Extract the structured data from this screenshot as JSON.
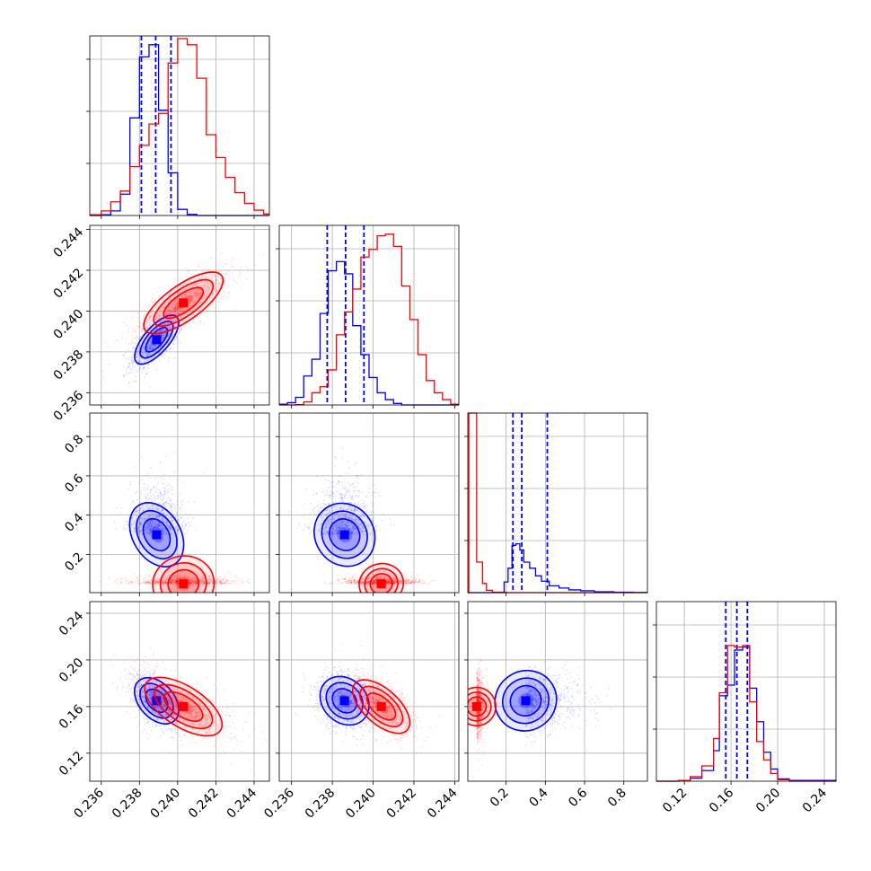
{
  "chart_data": {
    "type": "corner",
    "grid": true,
    "parameters": [
      {
        "range": [
          0.2354,
          0.2448
        ],
        "ticks": [
          "0.236",
          "0.238",
          "0.240",
          "0.242",
          "0.244"
        ],
        "tick_values": [
          0.236,
          0.238,
          0.24,
          0.242,
          0.244
        ]
      },
      {
        "range": [
          0.2354,
          0.2442
        ],
        "ticks": [
          "0.236",
          "0.238",
          "0.240",
          "0.242",
          "0.244"
        ],
        "tick_values": [
          0.236,
          0.238,
          0.24,
          0.242,
          0.244
        ]
      },
      {
        "range": [
          0.005,
          0.92
        ],
        "ticks": [
          "0.2",
          "0.4",
          "0.6",
          "0.8"
        ],
        "tick_values": [
          0.2,
          0.4,
          0.6,
          0.8
        ]
      },
      {
        "range": [
          0.096,
          0.25
        ],
        "ticks": [
          "0.12",
          "0.16",
          "0.20",
          "0.24"
        ],
        "tick_values": [
          0.12,
          0.16,
          0.2,
          0.24
        ]
      }
    ],
    "series": [
      {
        "color": "#0000ff",
        "quantiles": [
          [
            0.2381,
            0.23885,
            0.23965
          ],
          [
            0.23775,
            0.23865,
            0.23955
          ],
          [
            0.235,
            0.28,
            0.41
          ],
          [
            0.1555,
            0.165,
            0.174
          ]
        ],
        "means": [
          0.2389,
          0.2386,
          0.3,
          0.165
        ],
        "sds": [
          0.00055,
          0.0006,
          0.09,
          0.01
        ],
        "hist": [
          [
            [
              0.2354,
              0
            ],
            [
              0.236,
              0.05
            ],
            [
              0.2365,
              0.3
            ],
            [
              0.237,
              1.4
            ],
            [
              0.2375,
              6.4
            ],
            [
              0.238,
              10.4
            ],
            [
              0.2385,
              11.2
            ],
            [
              0.239,
              6.9
            ],
            [
              0.2395,
              2.8
            ],
            [
              0.24,
              0.4
            ],
            [
              0.2405,
              0.07
            ],
            [
              0.241,
              0
            ]
          ],
          [
            [
              0.2354,
              0.05
            ],
            [
              0.2358,
              0.15
            ],
            [
              0.2362,
              0.5
            ],
            [
              0.2366,
              1.9
            ],
            [
              0.237,
              3.0
            ],
            [
              0.2374,
              6.0
            ],
            [
              0.2378,
              8.8
            ],
            [
              0.2382,
              9.4
            ],
            [
              0.2386,
              8.6
            ],
            [
              0.239,
              5.2
            ],
            [
              0.2394,
              3.3
            ],
            [
              0.2398,
              1.8
            ],
            [
              0.2402,
              0.8
            ],
            [
              0.2406,
              0.35
            ],
            [
              0.241,
              0.1
            ],
            [
              0.2414,
              0
            ]
          ],
          [
            [
              0.005,
              0
            ],
            [
              0.19,
              0.7
            ],
            [
              0.21,
              1.6
            ],
            [
              0.23,
              3.1
            ],
            [
              0.25,
              3.2
            ],
            [
              0.27,
              2.8
            ],
            [
              0.29,
              2.0
            ],
            [
              0.32,
              1.6
            ],
            [
              0.35,
              1.1
            ],
            [
              0.38,
              0.75
            ],
            [
              0.42,
              0.45
            ],
            [
              0.47,
              0.3
            ],
            [
              0.52,
              0.18
            ],
            [
              0.58,
              0.12
            ],
            [
              0.65,
              0.06
            ],
            [
              0.75,
              0.03
            ],
            [
              0.85,
              0.01
            ],
            [
              0.92,
              0
            ]
          ],
          [
            [
              0.096,
              0
            ],
            [
              0.115,
              0.05
            ],
            [
              0.125,
              0.2
            ],
            [
              0.135,
              0.7
            ],
            [
              0.145,
              2.0
            ],
            [
              0.15,
              5.6
            ],
            [
              0.157,
              6.3
            ],
            [
              0.163,
              8.6
            ],
            [
              0.17,
              8.8
            ],
            [
              0.176,
              6.1
            ],
            [
              0.182,
              3.9
            ],
            [
              0.188,
              1.9
            ],
            [
              0.194,
              0.8
            ],
            [
              0.2,
              0.15
            ],
            [
              0.21,
              0.05
            ],
            [
              0.25,
              0
            ]
          ]
        ]
      },
      {
        "color": "#ff0000",
        "means": [
          0.2403,
          0.2404,
          0.05,
          0.16
        ],
        "sds": [
          0.00105,
          0.0007,
          0.018,
          0.011
        ],
        "hist": [
          [
            [
              0.2354,
              0.05
            ],
            [
              0.236,
              0.3
            ],
            [
              0.2365,
              0.9
            ],
            [
              0.237,
              1.6
            ],
            [
              0.2375,
              3.2
            ],
            [
              0.238,
              4.6
            ],
            [
              0.2385,
              6.0
            ],
            [
              0.239,
              6.7
            ],
            [
              0.2395,
              10.0
            ],
            [
              0.24,
              11.6
            ],
            [
              0.2405,
              11.2
            ],
            [
              0.241,
              9.0
            ],
            [
              0.2415,
              5.3
            ],
            [
              0.242,
              3.8
            ],
            [
              0.2425,
              2.5
            ],
            [
              0.243,
              1.5
            ],
            [
              0.2435,
              0.8
            ],
            [
              0.244,
              0.35
            ],
            [
              0.2445,
              0.1
            ]
          ],
          [
            [
              0.2354,
              0
            ],
            [
              0.2362,
              0.02
            ],
            [
              0.2366,
              0.2
            ],
            [
              0.237,
              0.8
            ],
            [
              0.2374,
              1.2
            ],
            [
              0.2378,
              2.3
            ],
            [
              0.2382,
              4.6
            ],
            [
              0.2386,
              6.1
            ],
            [
              0.239,
              7.6
            ],
            [
              0.2394,
              9.7
            ],
            [
              0.2398,
              10.2
            ],
            [
              0.2402,
              11.1
            ],
            [
              0.2406,
              11.2
            ],
            [
              0.241,
              10.4
            ],
            [
              0.2414,
              7.8
            ],
            [
              0.2418,
              5.6
            ],
            [
              0.2422,
              3.3
            ],
            [
              0.2426,
              1.6
            ],
            [
              0.243,
              0.8
            ],
            [
              0.2434,
              0.35
            ],
            [
              0.2438,
              0.05
            ]
          ],
          [
            [
              0.005,
              0
            ],
            [
              0.01,
              14.5
            ],
            [
              0.05,
              2.0
            ],
            [
              0.08,
              0.6
            ],
            [
              0.1,
              0.15
            ],
            [
              0.13,
              0.03
            ],
            [
              0.2,
              0
            ]
          ],
          [
            [
              0.096,
              0
            ],
            [
              0.115,
              0.05
            ],
            [
              0.125,
              0.3
            ],
            [
              0.135,
              1.0
            ],
            [
              0.145,
              2.8
            ],
            [
              0.15,
              5.8
            ],
            [
              0.157,
              8.9
            ],
            [
              0.163,
              8.8
            ],
            [
              0.17,
              8.9
            ],
            [
              0.176,
              5.2
            ],
            [
              0.182,
              2.6
            ],
            [
              0.188,
              1.4
            ],
            [
              0.194,
              0.5
            ],
            [
              0.2,
              0.1
            ],
            [
              0.21,
              0
            ]
          ]
        ]
      }
    ],
    "correlations": {
      "blue": {
        "1_0": 0.7,
        "2_0": -0.35,
        "2_1": -0.1,
        "3_0": -0.4,
        "3_1": -0.2,
        "3_2": 0.05
      },
      "red": {
        "1_0": 0.75,
        "2_0": 0.1,
        "2_1": 0.1,
        "3_0": -0.65,
        "3_1": -0.6,
        "3_2": 0.0
      }
    }
  }
}
